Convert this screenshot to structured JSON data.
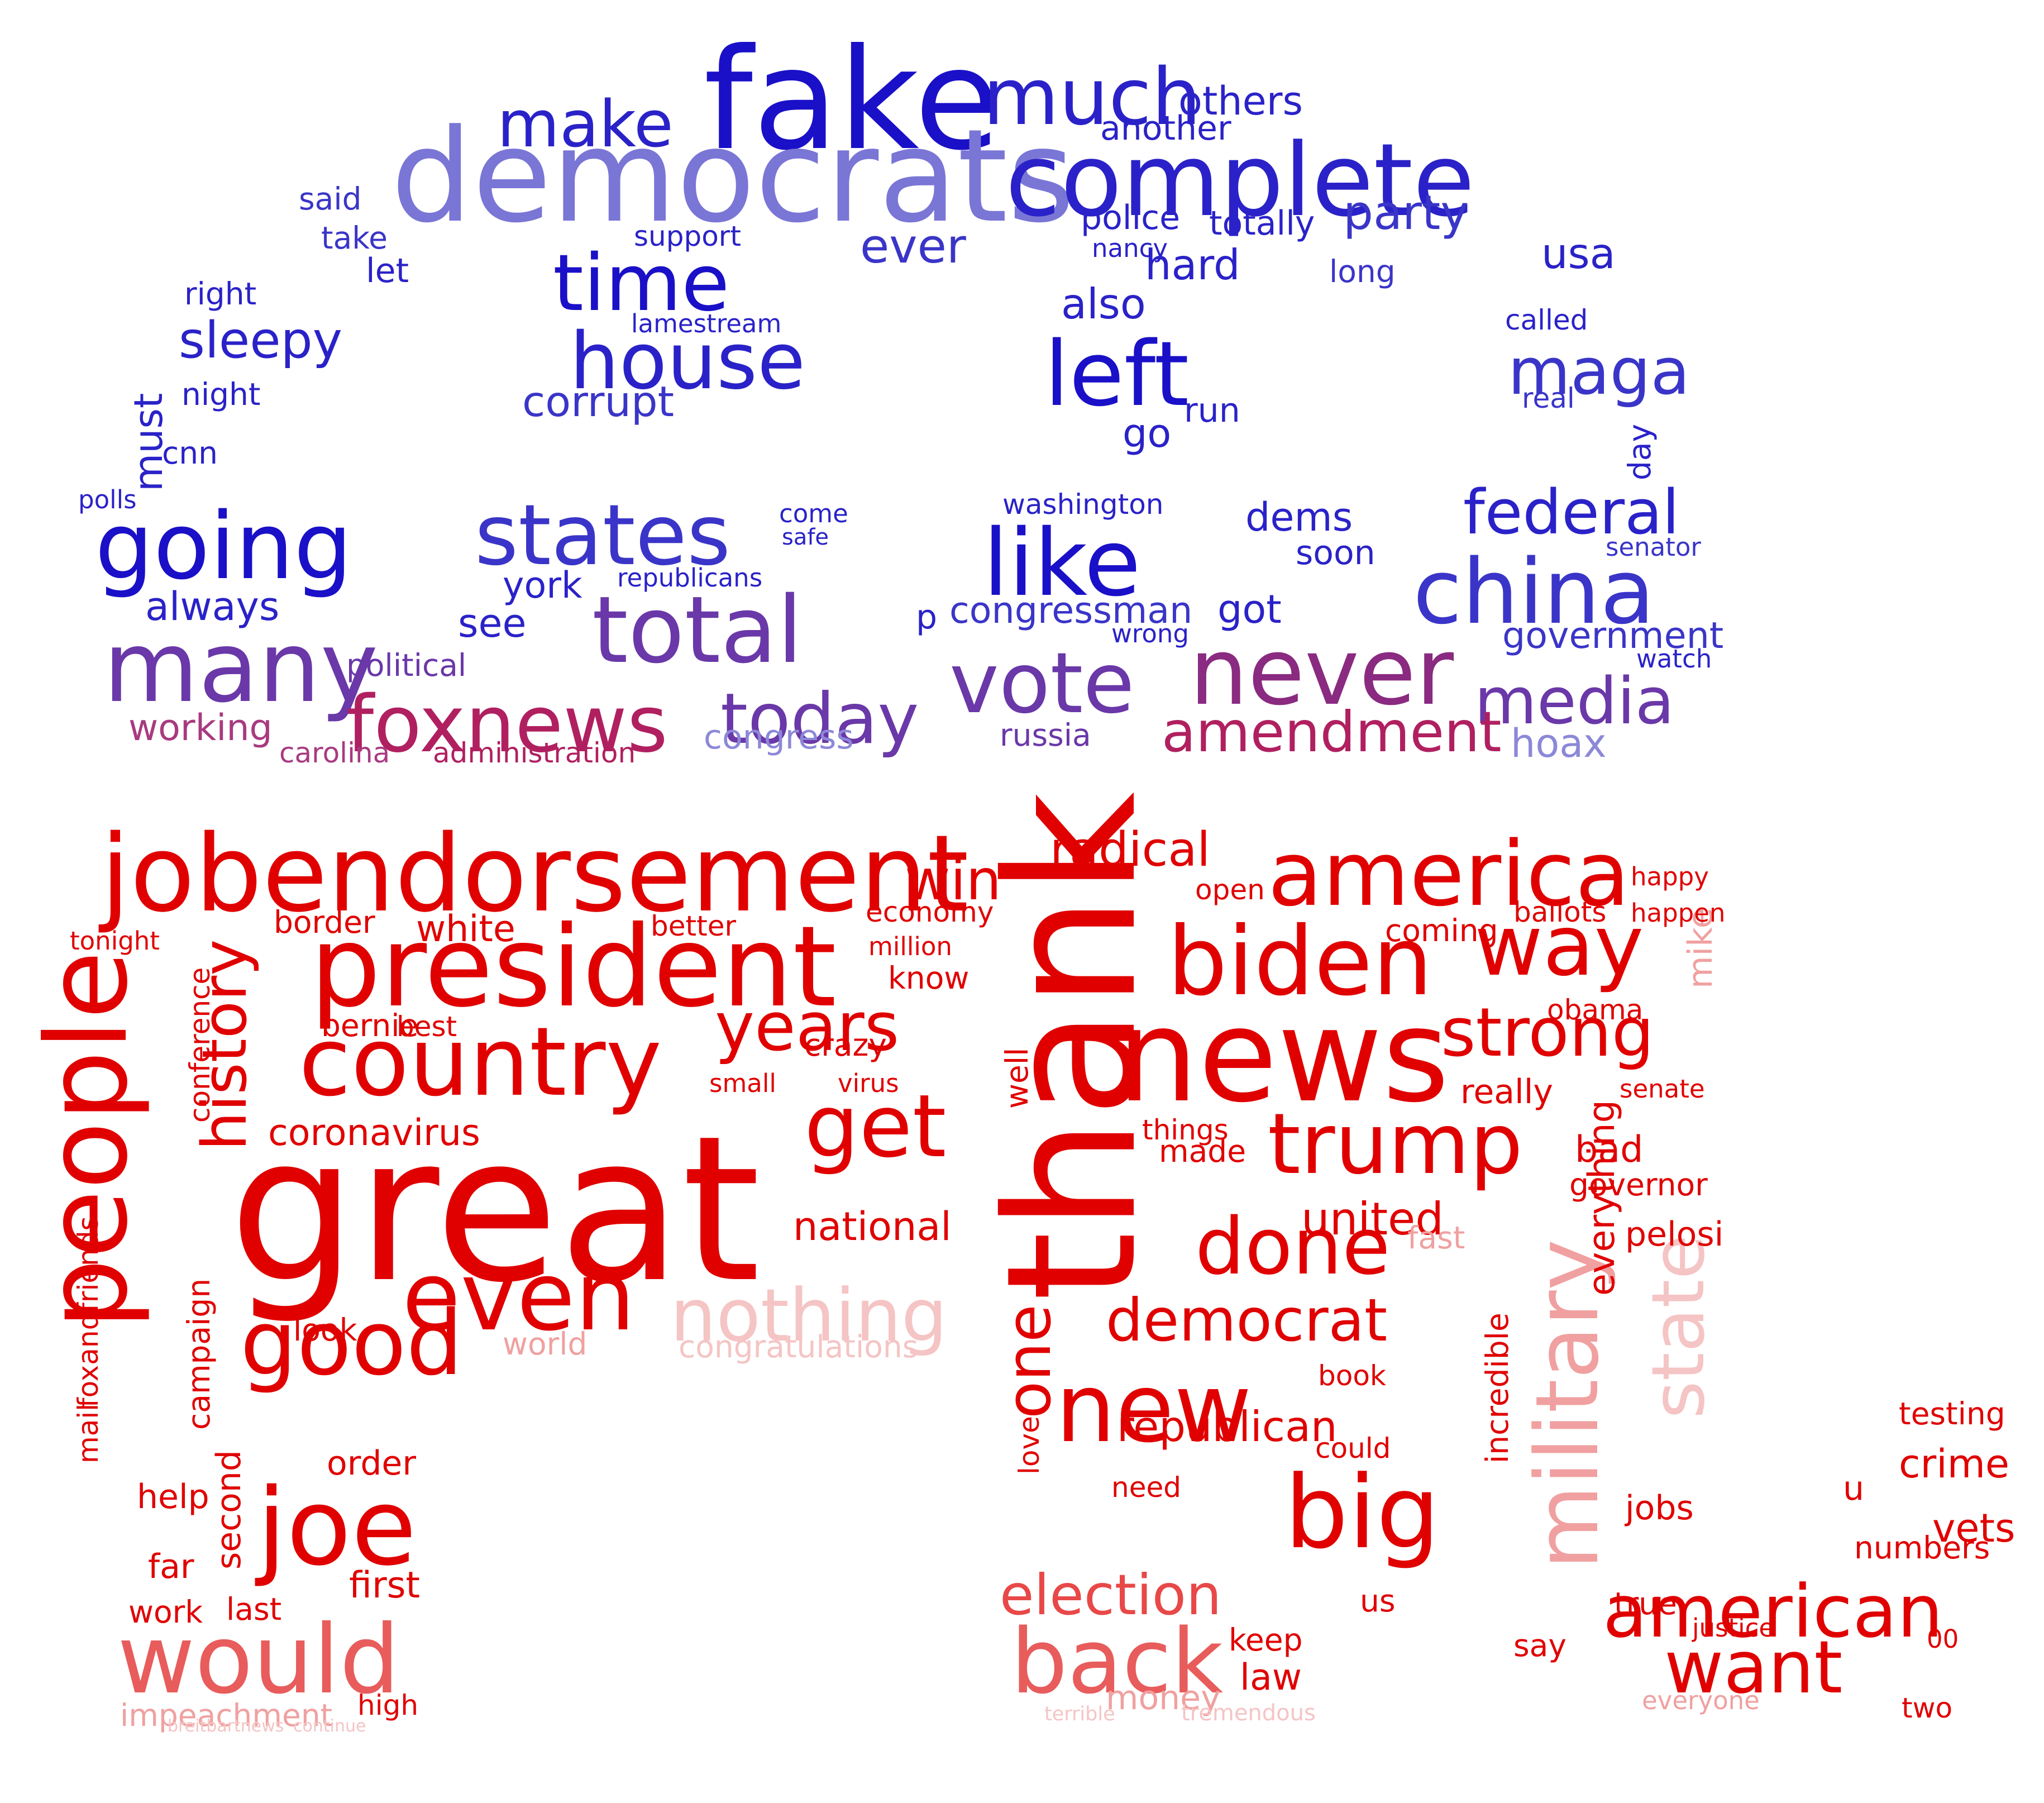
{
  "image": {
    "kind": "word cloud",
    "shape": "elephant"
  },
  "palette": {
    "blue_dark": "#1a10c8",
    "blue_mid": "#3a35c8",
    "blue_light": "#8c88d8",
    "purple": "#6a38a8",
    "crimson": "#b02060",
    "red": "#e00000",
    "red_mid": "#e84848",
    "pink": "#f0a0a0",
    "pink_light": "#f5c4c4"
  },
  "words": [
    {
      "text": "fake",
      "color": "#1a10c8"
    },
    {
      "text": "democrats",
      "color": "#7a76d6"
    },
    {
      "text": "complete",
      "color": "#2a22c8"
    },
    {
      "text": "much",
      "color": "#2a22c8"
    },
    {
      "text": "make",
      "color": "#2a22c8"
    },
    {
      "text": "time",
      "color": "#1a10c8"
    },
    {
      "text": "house",
      "color": "#2a22c8"
    },
    {
      "text": "left",
      "color": "#1a10c8"
    },
    {
      "text": "maga",
      "color": "#3a35c8"
    },
    {
      "text": "party",
      "color": "#3a35c8"
    },
    {
      "text": "others",
      "color": "#2a22c8"
    },
    {
      "text": "another",
      "color": "#2a22c8"
    },
    {
      "text": "police",
      "color": "#2a22c8"
    },
    {
      "text": "totally",
      "color": "#2a22c8"
    },
    {
      "text": "ever",
      "color": "#3a35c8"
    },
    {
      "text": "hard",
      "color": "#2a22c8"
    },
    {
      "text": "also",
      "color": "#2a22c8"
    },
    {
      "text": "usa",
      "color": "#2a22c8"
    },
    {
      "text": "sleepy",
      "color": "#2a22c8"
    },
    {
      "text": "going",
      "color": "#1a10c8"
    },
    {
      "text": "states",
      "color": "#3a35c8"
    },
    {
      "text": "like",
      "color": "#1a10c8"
    },
    {
      "text": "federal",
      "color": "#2a22c8"
    },
    {
      "text": "china",
      "color": "#3a35c8"
    },
    {
      "text": "total",
      "color": "#6a38a8"
    },
    {
      "text": "many",
      "color": "#6a38a8"
    },
    {
      "text": "vote",
      "color": "#6a38a8"
    },
    {
      "text": "never",
      "color": "#8a2a80"
    },
    {
      "text": "media",
      "color": "#6a38a8"
    },
    {
      "text": "foxnews",
      "color": "#b02060"
    },
    {
      "text": "today",
      "color": "#6a38a8"
    },
    {
      "text": "amendment",
      "color": "#b02060"
    },
    {
      "text": "corrupt",
      "color": "#3a35c8"
    },
    {
      "text": "must",
      "color": "#2a22c8"
    },
    {
      "text": "always",
      "color": "#2a22c8"
    },
    {
      "text": "york",
      "color": "#2a22c8"
    },
    {
      "text": "see",
      "color": "#2a22c8"
    },
    {
      "text": "congressman",
      "color": "#3a35c8"
    },
    {
      "text": "got",
      "color": "#2a22c8"
    },
    {
      "text": "dems",
      "color": "#2a22c8"
    },
    {
      "text": "soon",
      "color": "#2a22c8"
    },
    {
      "text": "government",
      "color": "#3a35c8"
    },
    {
      "text": "working",
      "color": "#a83a80"
    },
    {
      "text": "political",
      "color": "#6a38a8"
    },
    {
      "text": "russia",
      "color": "#6a38a8"
    },
    {
      "text": "congress",
      "color": "#8c88d8"
    },
    {
      "text": "administration",
      "color": "#b02060"
    },
    {
      "text": "carolina",
      "color": "#a83a80"
    },
    {
      "text": "hoax",
      "color": "#8c88d8"
    },
    {
      "text": "lamestream",
      "color": "#2a22c8"
    },
    {
      "text": "support",
      "color": "#2a22c8"
    },
    {
      "text": "washington",
      "color": "#2a22c8"
    },
    {
      "text": "republicans",
      "color": "#2a22c8"
    },
    {
      "text": "go",
      "color": "#2a22c8"
    },
    {
      "text": "run",
      "color": "#2a22c8"
    },
    {
      "text": "nancy",
      "color": "#2a22c8"
    },
    {
      "text": "long",
      "color": "#3a35c8"
    },
    {
      "text": "called",
      "color": "#2a22c8"
    },
    {
      "text": "said",
      "color": "#3a35c8"
    },
    {
      "text": "take",
      "color": "#3a35c8"
    },
    {
      "text": "let",
      "color": "#2a22c8"
    },
    {
      "text": "right",
      "color": "#2a22c8"
    },
    {
      "text": "night",
      "color": "#2a22c8"
    },
    {
      "text": "cnn",
      "color": "#2a22c8"
    },
    {
      "text": "polls",
      "color": "#2a22c8"
    },
    {
      "text": "day",
      "color": "#2a22c8"
    },
    {
      "text": "real",
      "color": "#3a35c8"
    },
    {
      "text": "senator",
      "color": "#3a35c8"
    },
    {
      "text": "watch",
      "color": "#2a22c8"
    },
    {
      "text": "p",
      "color": "#2a22c8"
    },
    {
      "text": "come",
      "color": "#2a22c8"
    },
    {
      "text": "safe",
      "color": "#2a22c8"
    },
    {
      "text": "wrong",
      "color": "#2a22c8"
    },
    {
      "text": "people",
      "color": "#e00000"
    },
    {
      "text": "great",
      "color": "#e00000"
    },
    {
      "text": "jobendorsement",
      "color": "#e00000"
    },
    {
      "text": "president",
      "color": "#e00000"
    },
    {
      "text": "country",
      "color": "#e00000"
    },
    {
      "text": "america",
      "color": "#e00000"
    },
    {
      "text": "biden",
      "color": "#e00000"
    },
    {
      "text": "thank",
      "color": "#e00000"
    },
    {
      "text": "news",
      "color": "#e00000"
    },
    {
      "text": "way",
      "color": "#e00000"
    },
    {
      "text": "strong",
      "color": "#e00000"
    },
    {
      "text": "trump",
      "color": "#e00000"
    },
    {
      "text": "win",
      "color": "#e00000"
    },
    {
      "text": "years",
      "color": "#e00000"
    },
    {
      "text": "get",
      "color": "#e00000"
    },
    {
      "text": "radical",
      "color": "#e00000"
    },
    {
      "text": "history",
      "color": "#e00000"
    },
    {
      "text": "even",
      "color": "#e00000"
    },
    {
      "text": "good",
      "color": "#e00000"
    },
    {
      "text": "nothing",
      "color": "#f5c4c4"
    },
    {
      "text": "done",
      "color": "#e00000"
    },
    {
      "text": "democrat",
      "color": "#e00000"
    },
    {
      "text": "new",
      "color": "#e00000"
    },
    {
      "text": "big",
      "color": "#e00000"
    },
    {
      "text": "military",
      "color": "#f0a0a0"
    },
    {
      "text": "state",
      "color": "#f5c4c4"
    },
    {
      "text": "joe",
      "color": "#e00000"
    },
    {
      "text": "would",
      "color": "#e85c5c"
    },
    {
      "text": "back",
      "color": "#e85c5c"
    },
    {
      "text": "want",
      "color": "#e00000"
    },
    {
      "text": "american",
      "color": "#e00000"
    },
    {
      "text": "election",
      "color": "#e84848"
    },
    {
      "text": "coronavirus",
      "color": "#e00000"
    },
    {
      "text": "white",
      "color": "#e00000"
    },
    {
      "text": "border",
      "color": "#e00000"
    },
    {
      "text": "bernie",
      "color": "#e00000"
    },
    {
      "text": "best",
      "color": "#e00000"
    },
    {
      "text": "crazy",
      "color": "#e00000"
    },
    {
      "text": "national",
      "color": "#e00000"
    },
    {
      "text": "world",
      "color": "#f0a0a0"
    },
    {
      "text": "congratulations",
      "color": "#f5c4c4"
    },
    {
      "text": "united",
      "color": "#e00000"
    },
    {
      "text": "republican",
      "color": "#e00000"
    },
    {
      "text": "crime",
      "color": "#e00000"
    },
    {
      "text": "vets",
      "color": "#e00000"
    },
    {
      "text": "jobs",
      "color": "#e00000"
    },
    {
      "text": "numbers",
      "color": "#e00000"
    },
    {
      "text": "testing",
      "color": "#e00000"
    },
    {
      "text": "first",
      "color": "#e00000"
    },
    {
      "text": "order",
      "color": "#e00000"
    },
    {
      "text": "second",
      "color": "#e00000"
    },
    {
      "text": "help",
      "color": "#e00000"
    },
    {
      "text": "far",
      "color": "#e00000"
    },
    {
      "text": "work",
      "color": "#e00000"
    },
    {
      "text": "last",
      "color": "#e00000"
    },
    {
      "text": "look",
      "color": "#e00000"
    },
    {
      "text": "campaign",
      "color": "#e00000"
    },
    {
      "text": "impeachment",
      "color": "#f0a0a0"
    },
    {
      "text": "money",
      "color": "#f0a0a0"
    },
    {
      "text": "keep",
      "color": "#e00000"
    },
    {
      "text": "law",
      "color": "#e00000"
    },
    {
      "text": "us",
      "color": "#e00000"
    },
    {
      "text": "really",
      "color": "#e00000"
    },
    {
      "text": "obama",
      "color": "#e00000"
    },
    {
      "text": "ballots",
      "color": "#e00000"
    },
    {
      "text": "bad",
      "color": "#e00000"
    },
    {
      "text": "governor",
      "color": "#e00000"
    },
    {
      "text": "economy",
      "color": "#e00000"
    },
    {
      "text": "better",
      "color": "#e00000"
    },
    {
      "text": "know",
      "color": "#e00000"
    },
    {
      "text": "well",
      "color": "#e00000"
    },
    {
      "text": "made",
      "color": "#e00000"
    },
    {
      "text": "mike",
      "color": "#f0a0a0"
    },
    {
      "text": "tonight",
      "color": "#e00000"
    },
    {
      "text": "incredible",
      "color": "#e00000"
    },
    {
      "text": "everything",
      "color": "#e00000"
    },
    {
      "text": "fast",
      "color": "#f0a0a0"
    },
    {
      "text": "two",
      "color": "#e00000"
    },
    {
      "text": "say",
      "color": "#e00000"
    },
    {
      "text": "true",
      "color": "#e00000"
    },
    {
      "text": "00",
      "color": "#e00000"
    },
    {
      "text": "u",
      "color": "#e00000"
    },
    {
      "text": "happy",
      "color": "#e00000"
    },
    {
      "text": "happen",
      "color": "#e00000"
    },
    {
      "text": "could",
      "color": "#e00000"
    },
    {
      "text": "book",
      "color": "#e00000"
    },
    {
      "text": "love",
      "color": "#e00000"
    },
    {
      "text": "one",
      "color": "#e00000"
    },
    {
      "text": "need",
      "color": "#e00000"
    },
    {
      "text": "small",
      "color": "#e00000"
    },
    {
      "text": "virus",
      "color": "#e00000"
    },
    {
      "text": "mail",
      "color": "#e00000"
    },
    {
      "text": "foxandfriends",
      "color": "#e00000"
    },
    {
      "text": "high",
      "color": "#e00000"
    },
    {
      "text": "pelosi",
      "color": "#e00000"
    },
    {
      "text": "senate",
      "color": "#e00000"
    },
    {
      "text": "coming",
      "color": "#e00000"
    },
    {
      "text": "open",
      "color": "#e00000"
    },
    {
      "text": "million",
      "color": "#e00000"
    },
    {
      "text": "conference",
      "color": "#e00000"
    },
    {
      "text": "things",
      "color": "#e00000"
    },
    {
      "text": "justice",
      "color": "#e00000"
    },
    {
      "text": "everyone",
      "color": "#f0a0a0"
    },
    {
      "text": "tremendous",
      "color": "#f5c4c4"
    },
    {
      "text": "terrible",
      "color": "#f5c4c4"
    },
    {
      "text": "continue",
      "color": "#f5c4c4"
    },
    {
      "text": "breitbartnews",
      "color": "#f5c4c4"
    }
  ]
}
